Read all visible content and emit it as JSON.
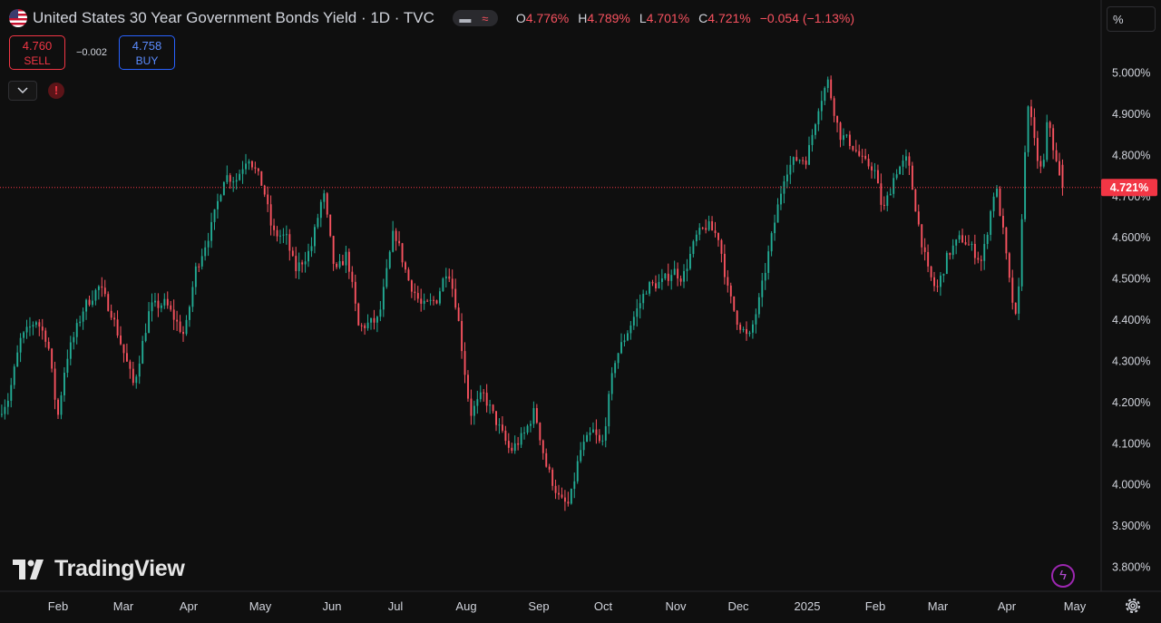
{
  "header": {
    "title": "United States 30 Year Government Bonds Yield · 1D · TVC",
    "ohlc": [
      {
        "key": "O",
        "value": "4.776%"
      },
      {
        "key": "H",
        "value": "4.789%"
      },
      {
        "key": "L",
        "value": "4.701%"
      },
      {
        "key": "C",
        "value": "4.721%"
      }
    ],
    "change": "−0.054 (−1.13%)"
  },
  "trade": {
    "sell_price": "4.760",
    "sell_label": "SELL",
    "spread": "−0.002",
    "buy_price": "4.758",
    "buy_label": "BUY"
  },
  "scale_mode": "%",
  "branding": "TradingView",
  "icons": [
    "us-flag-icon",
    "chevron-down-icon",
    "warning-icon",
    "lightning-icon",
    "settings-gear-icon",
    "tradingview-logo-icon"
  ],
  "colors": {
    "up": "#22ab94",
    "down": "#f7525f",
    "background": "#0f0f0f",
    "last_price_line": "#f23645"
  },
  "chart_data": {
    "type": "candlestick",
    "y_axis": {
      "ticks": [
        3.8,
        3.9,
        4.0,
        4.1,
        4.2,
        4.3,
        4.4,
        4.5,
        4.6,
        4.7,
        4.8,
        4.9,
        5.0
      ],
      "tick_labels": [
        "3.800%",
        "3.900%",
        "4.000%",
        "4.100%",
        "4.200%",
        "4.300%",
        "4.400%",
        "4.500%",
        "4.600%",
        "4.700%",
        "4.800%",
        "4.900%",
        "5.000%"
      ],
      "range": [
        3.78,
        5.03
      ],
      "position": "right"
    },
    "x_axis": {
      "labels": [
        "Feb",
        "Mar",
        "Apr",
        "May",
        "Jun",
        "Jul",
        "Aug",
        "Sep",
        "Oct",
        "Nov",
        "Dec",
        "2025",
        "Feb",
        "Mar",
        "Apr",
        "May"
      ]
    },
    "last_price": {
      "value": 4.721,
      "label": "4.721%"
    },
    "trend": [
      {
        "x": 0,
        "v": 4.17
      },
      {
        "x": 12,
        "v": 4.21
      },
      {
        "x": 25,
        "v": 4.35
      },
      {
        "x": 42,
        "v": 4.4
      },
      {
        "x": 55,
        "v": 4.35
      },
      {
        "x": 66,
        "v": 4.16
      },
      {
        "x": 75,
        "v": 4.3
      },
      {
        "x": 95,
        "v": 4.43
      },
      {
        "x": 112,
        "v": 4.48
      },
      {
        "x": 125,
        "v": 4.42
      },
      {
        "x": 150,
        "v": 4.24
      },
      {
        "x": 168,
        "v": 4.43
      },
      {
        "x": 185,
        "v": 4.44
      },
      {
        "x": 206,
        "v": 4.36
      },
      {
        "x": 218,
        "v": 4.52
      },
      {
        "x": 235,
        "v": 4.62
      },
      {
        "x": 250,
        "v": 4.75
      },
      {
        "x": 263,
        "v": 4.74
      },
      {
        "x": 276,
        "v": 4.8
      },
      {
        "x": 293,
        "v": 4.72
      },
      {
        "x": 303,
        "v": 4.61
      },
      {
        "x": 318,
        "v": 4.6
      },
      {
        "x": 328,
        "v": 4.52
      },
      {
        "x": 345,
        "v": 4.57
      },
      {
        "x": 359,
        "v": 4.71
      },
      {
        "x": 372,
        "v": 4.51
      },
      {
        "x": 385,
        "v": 4.56
      },
      {
        "x": 398,
        "v": 4.38
      },
      {
        "x": 420,
        "v": 4.4
      },
      {
        "x": 437,
        "v": 4.62
      },
      {
        "x": 452,
        "v": 4.5
      },
      {
        "x": 468,
        "v": 4.43
      },
      {
        "x": 484,
        "v": 4.45
      },
      {
        "x": 496,
        "v": 4.53
      },
      {
        "x": 506,
        "v": 4.43
      },
      {
        "x": 521,
        "v": 4.17
      },
      {
        "x": 535,
        "v": 4.22
      },
      {
        "x": 548,
        "v": 4.16
      },
      {
        "x": 565,
        "v": 4.08
      },
      {
        "x": 580,
        "v": 4.12
      },
      {
        "x": 592,
        "v": 4.18
      },
      {
        "x": 604,
        "v": 4.05
      },
      {
        "x": 620,
        "v": 3.96
      },
      {
        "x": 630,
        "v": 3.95
      },
      {
        "x": 642,
        "v": 4.08
      },
      {
        "x": 656,
        "v": 4.13
      },
      {
        "x": 666,
        "v": 4.09
      },
      {
        "x": 680,
        "v": 4.3
      },
      {
        "x": 700,
        "v": 4.4
      },
      {
        "x": 716,
        "v": 4.48
      },
      {
        "x": 732,
        "v": 4.49
      },
      {
        "x": 745,
        "v": 4.52
      },
      {
        "x": 755,
        "v": 4.5
      },
      {
        "x": 770,
        "v": 4.6
      },
      {
        "x": 782,
        "v": 4.63
      },
      {
        "x": 795,
        "v": 4.6
      },
      {
        "x": 805,
        "v": 4.47
      },
      {
        "x": 815,
        "v": 4.4
      },
      {
        "x": 828,
        "v": 4.35
      },
      {
        "x": 840,
        "v": 4.45
      },
      {
        "x": 855,
        "v": 4.62
      },
      {
        "x": 868,
        "v": 4.76
      },
      {
        "x": 880,
        "v": 4.79
      },
      {
        "x": 892,
        "v": 4.79
      },
      {
        "x": 905,
        "v": 4.92
      },
      {
        "x": 915,
        "v": 4.98
      },
      {
        "x": 928,
        "v": 4.85
      },
      {
        "x": 940,
        "v": 4.83
      },
      {
        "x": 955,
        "v": 4.78
      },
      {
        "x": 966,
        "v": 4.77
      },
      {
        "x": 976,
        "v": 4.66
      },
      {
        "x": 990,
        "v": 4.76
      },
      {
        "x": 1003,
        "v": 4.79
      },
      {
        "x": 1016,
        "v": 4.62
      },
      {
        "x": 1025,
        "v": 4.52
      },
      {
        "x": 1035,
        "v": 4.47
      },
      {
        "x": 1048,
        "v": 4.56
      },
      {
        "x": 1062,
        "v": 4.6
      },
      {
        "x": 1075,
        "v": 4.57
      },
      {
        "x": 1085,
        "v": 4.54
      },
      {
        "x": 1100,
        "v": 4.73
      },
      {
        "x": 1108,
        "v": 4.62
      },
      {
        "x": 1116,
        "v": 4.48
      },
      {
        "x": 1124,
        "v": 4.38
      },
      {
        "x": 1130,
        "v": 4.7
      },
      {
        "x": 1136,
        "v": 4.93
      },
      {
        "x": 1145,
        "v": 4.8
      },
      {
        "x": 1152,
        "v": 4.75
      },
      {
        "x": 1158,
        "v": 4.9
      },
      {
        "x": 1165,
        "v": 4.8
      },
      {
        "x": 1173,
        "v": 4.721
      }
    ]
  }
}
